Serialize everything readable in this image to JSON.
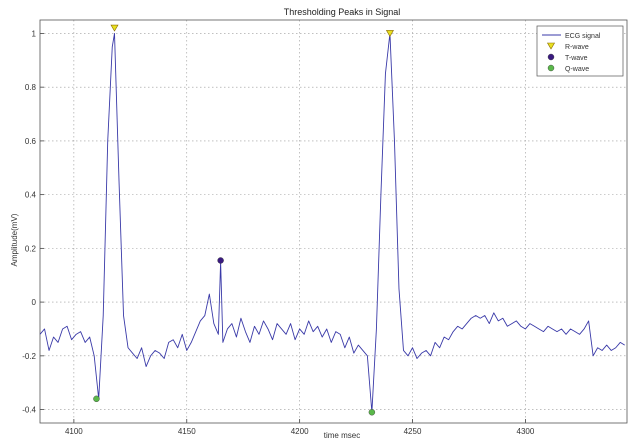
{
  "chart_data": {
    "type": "line",
    "title": "Thresholding Peaks in Signal",
    "xlabel": "time msec",
    "ylabel": "Amplitude(mV)",
    "xlim": [
      4085,
      4345
    ],
    "ylim": [
      -0.45,
      1.05
    ],
    "xticks": [
      4100,
      4150,
      4200,
      4250,
      4300
    ],
    "yticks": [
      -0.4,
      -0.2,
      0,
      0.2,
      0.4,
      0.6,
      0.8,
      1
    ],
    "ytick_labels": [
      "-0.4",
      "-0.2",
      "0",
      "0.2",
      "0.4",
      "0.6",
      "0.8",
      "1"
    ],
    "grid": true,
    "legend_position": "top-right",
    "series": [
      {
        "name": "ECG signal",
        "color": "#3a3aa8",
        "x": [
          4085,
          4087,
          4089,
          4091,
          4093,
          4095,
          4097,
          4099,
          4101,
          4103,
          4105,
          4107,
          4109,
          4111,
          4113,
          4115,
          4117,
          4118,
          4120,
          4122,
          4124,
          4126,
          4128,
          4130,
          4132,
          4134,
          4136,
          4138,
          4140,
          4142,
          4144,
          4146,
          4148,
          4150,
          4152,
          4154,
          4156,
          4158,
          4160,
          4162,
          4164,
          4165,
          4166,
          4168,
          4170,
          4172,
          4174,
          4176,
          4178,
          4180,
          4182,
          4184,
          4186,
          4188,
          4190,
          4192,
          4194,
          4196,
          4198,
          4200,
          4202,
          4204,
          4206,
          4208,
          4210,
          4212,
          4214,
          4216,
          4218,
          4220,
          4222,
          4224,
          4226,
          4228,
          4230,
          4232,
          4234,
          4236,
          4238,
          4240,
          4242,
          4244,
          4246,
          4248,
          4250,
          4252,
          4254,
          4256,
          4258,
          4260,
          4262,
          4264,
          4266,
          4268,
          4270,
          4272,
          4274,
          4276,
          4278,
          4280,
          4282,
          4284,
          4286,
          4288,
          4290,
          4292,
          4294,
          4296,
          4298,
          4300,
          4302,
          4304,
          4306,
          4308,
          4310,
          4312,
          4314,
          4316,
          4318,
          4320,
          4322,
          4324,
          4326,
          4328,
          4330,
          4332,
          4334,
          4336,
          4338,
          4340,
          4342,
          4344
        ],
        "y": [
          -0.12,
          -0.1,
          -0.18,
          -0.13,
          -0.15,
          -0.1,
          -0.09,
          -0.14,
          -0.12,
          -0.11,
          -0.15,
          -0.13,
          -0.2,
          -0.36,
          -0.05,
          0.6,
          0.95,
          1.0,
          0.45,
          -0.05,
          -0.17,
          -0.19,
          -0.21,
          -0.17,
          -0.24,
          -0.2,
          -0.18,
          -0.19,
          -0.21,
          -0.15,
          -0.14,
          -0.17,
          -0.12,
          -0.18,
          -0.15,
          -0.11,
          -0.07,
          -0.05,
          0.03,
          -0.08,
          -0.12,
          0.15,
          -0.15,
          -0.1,
          -0.08,
          -0.13,
          -0.06,
          -0.11,
          -0.15,
          -0.09,
          -0.12,
          -0.07,
          -0.1,
          -0.14,
          -0.08,
          -0.1,
          -0.12,
          -0.08,
          -0.14,
          -0.1,
          -0.12,
          -0.07,
          -0.11,
          -0.09,
          -0.13,
          -0.1,
          -0.15,
          -0.11,
          -0.12,
          -0.17,
          -0.13,
          -0.19,
          -0.16,
          -0.18,
          -0.2,
          -0.41,
          -0.1,
          0.4,
          0.85,
          1.0,
          0.6,
          0.05,
          -0.18,
          -0.2,
          -0.17,
          -0.21,
          -0.19,
          -0.18,
          -0.2,
          -0.15,
          -0.17,
          -0.13,
          -0.14,
          -0.11,
          -0.09,
          -0.1,
          -0.08,
          -0.06,
          -0.05,
          -0.06,
          -0.05,
          -0.08,
          -0.04,
          -0.07,
          -0.06,
          -0.09,
          -0.08,
          -0.07,
          -0.09,
          -0.1,
          -0.08,
          -0.09,
          -0.1,
          -0.11,
          -0.09,
          -0.1,
          -0.11,
          -0.1,
          -0.12,
          -0.1,
          -0.11,
          -0.12,
          -0.1,
          -0.07,
          -0.2,
          -0.17,
          -0.18,
          -0.16,
          -0.18,
          -0.17,
          -0.15,
          -0.16
        ]
      }
    ],
    "markers": [
      {
        "name": "R-wave",
        "shape": "triangle-down",
        "color": "#e8e020",
        "points": [
          [
            4118,
            1.02
          ],
          [
            4240,
            1.0
          ]
        ]
      },
      {
        "name": "T-wave",
        "shape": "circle",
        "color": "#3a1a80",
        "points": [
          [
            4165,
            0.155
          ]
        ]
      },
      {
        "name": "Q-wave",
        "shape": "circle",
        "color": "#5ab84a",
        "points": [
          [
            4110,
            -0.36
          ],
          [
            4232,
            -0.41
          ]
        ]
      }
    ]
  }
}
